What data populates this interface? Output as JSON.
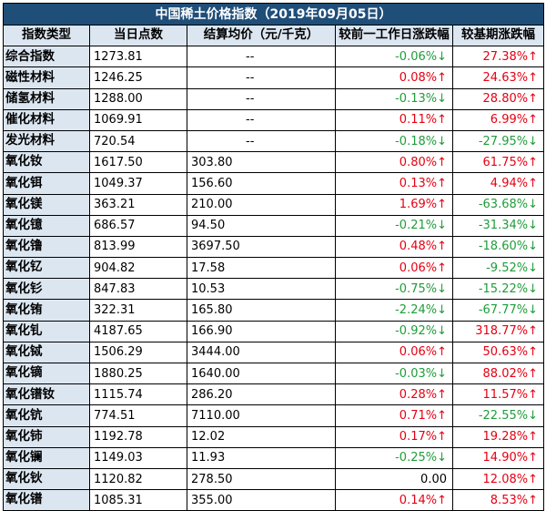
{
  "title": "中国稀土价格指数（2019年09月05日）",
  "headers": [
    "指数类型",
    "当日点数",
    "结算均价（元/千克）",
    "较前一工作日涨跌幅",
    "较基期涨跌幅"
  ],
  "colors": {
    "up": "#e60012",
    "down": "#1f9d3a",
    "header_bg": "#1f4e79",
    "label_bg": "#dce6f1"
  },
  "rows": [
    {
      "name": "综合指数",
      "points": "1273.81",
      "avg": "--",
      "daily": "-0.06%↓",
      "daily_dir": "down",
      "base": "27.38%↑",
      "base_dir": "up"
    },
    {
      "name": "磁性材料",
      "points": "1246.25",
      "avg": "--",
      "daily": "0.08%↑",
      "daily_dir": "up",
      "base": "24.63%↑",
      "base_dir": "up"
    },
    {
      "name": "储氢材料",
      "points": "1288.00",
      "avg": "--",
      "daily": "-0.13%↓",
      "daily_dir": "down",
      "base": "28.80%↑",
      "base_dir": "up"
    },
    {
      "name": "催化材料",
      "points": "1069.91",
      "avg": "--",
      "daily": "0.11%↑",
      "daily_dir": "up",
      "base": "6.99%↑",
      "base_dir": "up"
    },
    {
      "name": "发光材料",
      "points": "720.54",
      "avg": "--",
      "daily": "-0.18%↓",
      "daily_dir": "down",
      "base": "-27.95%↓",
      "base_dir": "down"
    },
    {
      "name": "氧化钕",
      "points": "1617.50",
      "avg": "303.80",
      "daily": "0.80%↑",
      "daily_dir": "up",
      "base": "61.75%↑",
      "base_dir": "up"
    },
    {
      "name": "氧化铒",
      "points": "1049.37",
      "avg": "156.60",
      "daily": "0.13%↑",
      "daily_dir": "up",
      "base": "4.94%↑",
      "base_dir": "up"
    },
    {
      "name": "氧化镁",
      "points": "363.21",
      "avg": "210.00",
      "daily": "1.69%↑",
      "daily_dir": "up",
      "base": "-63.68%↓",
      "base_dir": "down"
    },
    {
      "name": "氧化镱",
      "points": "686.57",
      "avg": "94.50",
      "daily": "-0.21%↓",
      "daily_dir": "down",
      "base": "-31.34%↓",
      "base_dir": "down"
    },
    {
      "name": "氧化镥",
      "points": "813.99",
      "avg": "3697.50",
      "daily": "0.48%↑",
      "daily_dir": "up",
      "base": "-18.60%↓",
      "base_dir": "down"
    },
    {
      "name": "氧化钇",
      "points": "904.82",
      "avg": "17.58",
      "daily": "0.06%↑",
      "daily_dir": "up",
      "base": "-9.52%↓",
      "base_dir": "down"
    },
    {
      "name": "氧化钐",
      "points": "847.83",
      "avg": "10.53",
      "daily": "-0.75%↓",
      "daily_dir": "down",
      "base": "-15.22%↓",
      "base_dir": "down"
    },
    {
      "name": "氧化铕",
      "points": "322.31",
      "avg": "165.80",
      "daily": "-2.24%↓",
      "daily_dir": "down",
      "base": "-67.77%↓",
      "base_dir": "down"
    },
    {
      "name": "氧化钆",
      "points": "4187.65",
      "avg": "166.90",
      "daily": "-0.92%↓",
      "daily_dir": "down",
      "base": "318.77%↑",
      "base_dir": "up"
    },
    {
      "name": "氧化铽",
      "points": "1506.29",
      "avg": "3444.00",
      "daily": "0.06%↑",
      "daily_dir": "up",
      "base": "50.63%↑",
      "base_dir": "up"
    },
    {
      "name": "氧化镝",
      "points": "1880.25",
      "avg": "1640.00",
      "daily": "-0.03%↓",
      "daily_dir": "down",
      "base": "88.02%↑",
      "base_dir": "up"
    },
    {
      "name": "氧化镨钕",
      "points": "1115.74",
      "avg": "286.20",
      "daily": "0.28%↑",
      "daily_dir": "up",
      "base": "11.57%↑",
      "base_dir": "up"
    },
    {
      "name": "氧化钪",
      "points": "774.51",
      "avg": "7110.00",
      "daily": "0.71%↑",
      "daily_dir": "up",
      "base": "-22.55%↓",
      "base_dir": "down"
    },
    {
      "name": "氧化铈",
      "points": "1192.78",
      "avg": "12.02",
      "daily": "0.17%↑",
      "daily_dir": "up",
      "base": "19.28%↑",
      "base_dir": "up"
    },
    {
      "name": "氧化镧",
      "points": "1149.03",
      "avg": "11.93",
      "daily": "-0.25%↓",
      "daily_dir": "down",
      "base": "14.90%↑",
      "base_dir": "up"
    },
    {
      "name": "氧化钬",
      "points": "1120.82",
      "avg": "278.50",
      "daily": "0.00",
      "daily_dir": "flat",
      "base": "12.08%↑",
      "base_dir": "up"
    },
    {
      "name": "氧化镨",
      "points": "1085.31",
      "avg": "355.00",
      "daily": "0.14%↑",
      "daily_dir": "up",
      "base": "8.53%↑",
      "base_dir": "up"
    }
  ]
}
